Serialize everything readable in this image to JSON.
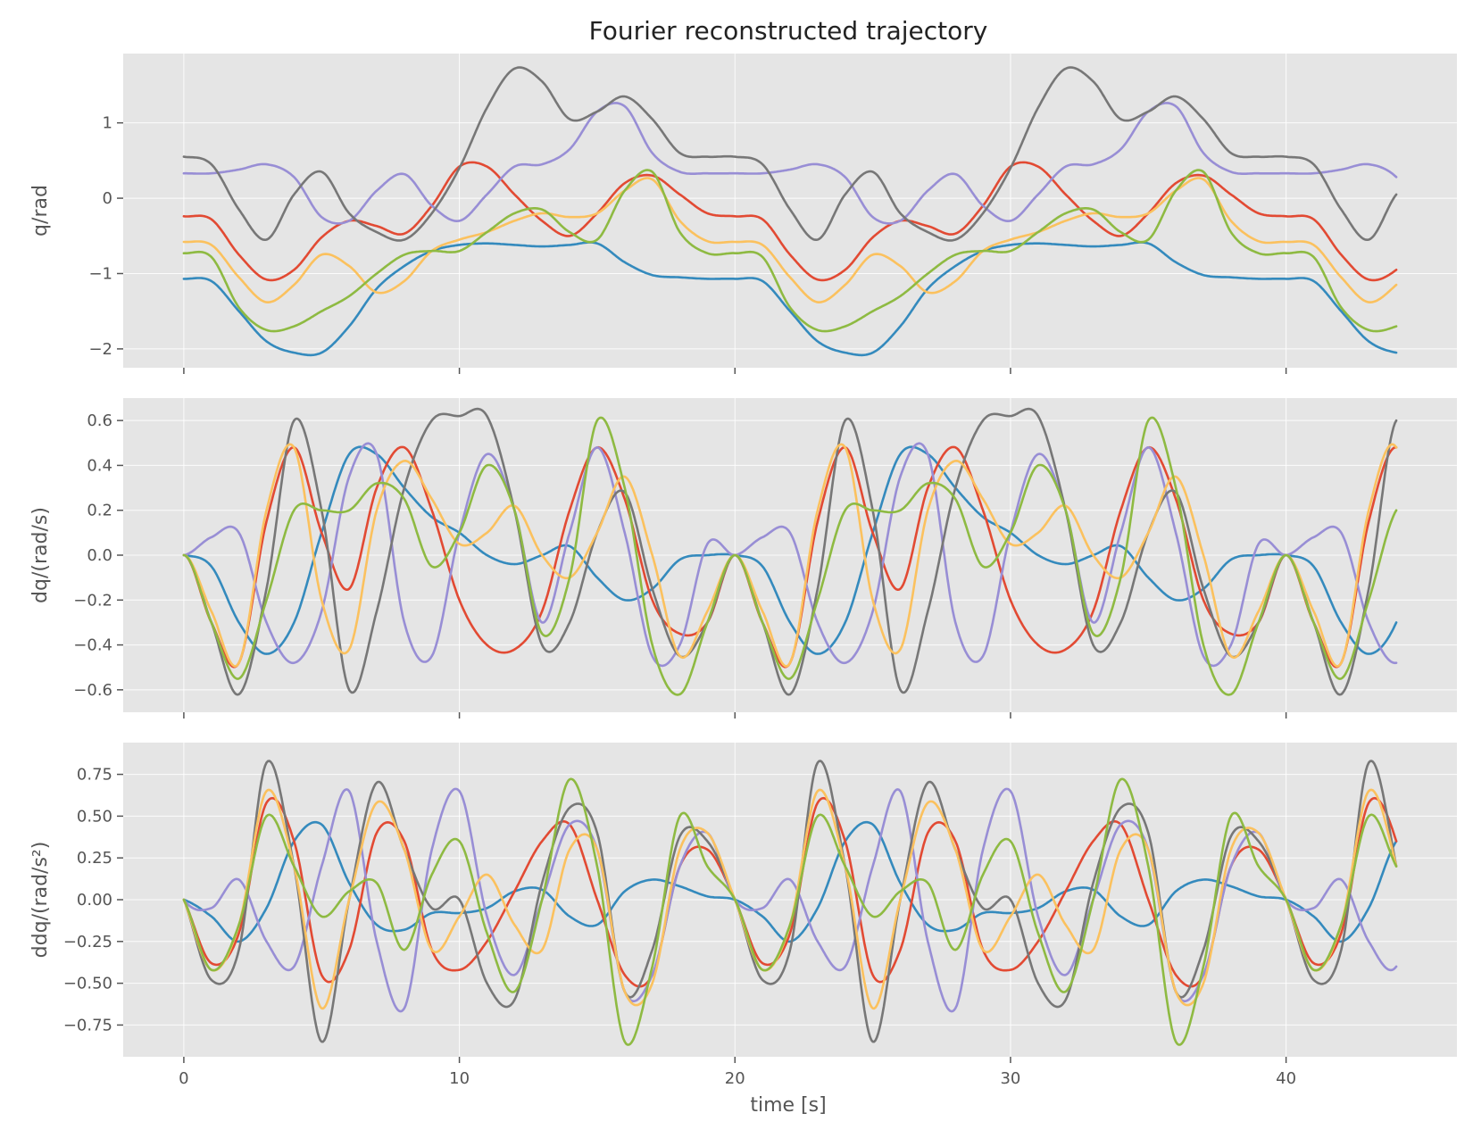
{
  "chart_data": {
    "type": "line",
    "title": "Fourier reconstructed trajectory",
    "xlabel": "time [s]",
    "xlim": [
      -2.2,
      46.2
    ],
    "xticks": [
      0,
      10,
      20,
      30,
      40
    ],
    "period": 20,
    "duration": 44,
    "grid": true,
    "legend": "none",
    "colors": [
      "#348ABD",
      "#E24A33",
      "#988ED5",
      "#777777",
      "#FBC15E",
      "#8EBA42"
    ],
    "subplots": [
      {
        "ylabel": "q/rad",
        "ylim": [
          -2.25,
          1.92
        ],
        "yticks": [
          -2,
          -1,
          0,
          1
        ],
        "ytick_labels": [
          "−2",
          "−1",
          "0",
          "1"
        ],
        "series": [
          {
            "x": [
              0,
              1,
              2,
              3,
              4,
              5,
              6,
              7,
              8,
              9,
              10,
              11,
              12,
              13,
              14,
              15,
              16,
              17,
              18,
              19,
              20
            ],
            "values": [
              -1.07,
              -1.1,
              -1.5,
              -1.9,
              -2.05,
              -2.05,
              -1.7,
              -1.2,
              -0.9,
              -0.7,
              -0.62,
              -0.6,
              -0.62,
              -0.64,
              -0.62,
              -0.6,
              -0.85,
              -1.02,
              -1.05,
              -1.07,
              -1.07
            ]
          },
          {
            "x": [
              0,
              1,
              2,
              3,
              4,
              5,
              6,
              7,
              8,
              9,
              10,
              11,
              12,
              13,
              14,
              15,
              16,
              17,
              18,
              19,
              20
            ],
            "values": [
              -0.24,
              -0.28,
              -0.75,
              -1.08,
              -0.95,
              -0.52,
              -0.3,
              -0.37,
              -0.47,
              -0.1,
              0.42,
              0.42,
              0.05,
              -0.3,
              -0.5,
              -0.2,
              0.2,
              0.3,
              0.05,
              -0.2,
              -0.24
            ]
          },
          {
            "x": [
              0,
              1,
              2,
              3,
              4,
              5,
              6,
              7,
              8,
              9,
              10,
              11,
              12,
              13,
              14,
              15,
              16,
              17,
              18,
              19,
              20
            ],
            "values": [
              0.33,
              0.33,
              0.38,
              0.45,
              0.28,
              -0.25,
              -0.3,
              0.1,
              0.32,
              -0.1,
              -0.3,
              0.05,
              0.42,
              0.45,
              0.65,
              1.15,
              1.22,
              0.6,
              0.35,
              0.33,
              0.33
            ]
          },
          {
            "x": [
              0,
              1,
              2,
              3,
              4,
              5,
              6,
              7,
              8,
              9,
              10,
              11,
              12,
              13,
              14,
              15,
              16,
              17,
              18,
              19,
              20
            ],
            "values": [
              0.55,
              0.45,
              -0.15,
              -0.55,
              0.05,
              0.35,
              -0.2,
              -0.45,
              -0.55,
              -0.2,
              0.4,
              1.2,
              1.72,
              1.55,
              1.05,
              1.15,
              1.35,
              1.05,
              0.6,
              0.55,
              0.55
            ]
          },
          {
            "x": [
              0,
              1,
              2,
              3,
              4,
              5,
              6,
              7,
              8,
              9,
              10,
              11,
              12,
              13,
              14,
              15,
              16,
              17,
              18,
              19,
              20
            ],
            "values": [
              -0.58,
              -0.62,
              -1.05,
              -1.38,
              -1.15,
              -0.75,
              -0.9,
              -1.25,
              -1.1,
              -0.7,
              -0.55,
              -0.45,
              -0.3,
              -0.2,
              -0.25,
              -0.2,
              0.1,
              0.25,
              -0.3,
              -0.57,
              -0.58
            ]
          },
          {
            "x": [
              0,
              1,
              2,
              3,
              4,
              5,
              6,
              7,
              8,
              9,
              10,
              11,
              12,
              13,
              14,
              15,
              16,
              17,
              18,
              19,
              20
            ],
            "values": [
              -0.73,
              -0.78,
              -1.45,
              -1.75,
              -1.7,
              -1.5,
              -1.3,
              -1.0,
              -0.75,
              -0.7,
              -0.7,
              -0.45,
              -0.2,
              -0.15,
              -0.45,
              -0.55,
              0.1,
              0.35,
              -0.45,
              -0.73,
              -0.73
            ]
          }
        ]
      },
      {
        "ylabel": "dq/(rad/s)",
        "ylim": [
          -0.7,
          0.7
        ],
        "yticks": [
          -0.6,
          -0.4,
          -0.2,
          0.0,
          0.2,
          0.4,
          0.6
        ],
        "ytick_labels": [
          "−0.6",
          "−0.4",
          "−0.2",
          "0.0",
          "0.2",
          "0.4",
          "0.6"
        ],
        "series": [
          {
            "x": [
              0,
              1,
              2,
              3,
              4,
              5,
              6,
              7,
              8,
              9,
              10,
              11,
              12,
              13,
              14,
              15,
              16,
              17,
              18,
              19,
              20
            ],
            "values": [
              0.0,
              -0.05,
              -0.3,
              -0.44,
              -0.3,
              0.1,
              0.45,
              0.45,
              0.3,
              0.17,
              0.1,
              0.0,
              -0.04,
              0.0,
              0.04,
              -0.1,
              -0.2,
              -0.15,
              -0.02,
              0.0,
              0.0
            ]
          },
          {
            "x": [
              0,
              1,
              2,
              3,
              4,
              5,
              6,
              7,
              8,
              9,
              10,
              11,
              12,
              13,
              14,
              15,
              16,
              17,
              18,
              19,
              20
            ],
            "values": [
              0.0,
              -0.3,
              -0.48,
              0.15,
              0.48,
              0.1,
              -0.15,
              0.3,
              0.48,
              0.2,
              -0.2,
              -0.4,
              -0.42,
              -0.25,
              0.2,
              0.48,
              0.25,
              -0.2,
              -0.35,
              -0.3,
              0.0
            ]
          },
          {
            "x": [
              0,
              1,
              2,
              3,
              4,
              5,
              6,
              7,
              8,
              9,
              10,
              11,
              12,
              13,
              14,
              15,
              16,
              17,
              18,
              19,
              20
            ],
            "values": [
              0.0,
              0.08,
              0.1,
              -0.3,
              -0.48,
              -0.25,
              0.35,
              0.45,
              -0.3,
              -0.45,
              0.1,
              0.45,
              0.2,
              -0.3,
              0.1,
              0.48,
              0.1,
              -0.45,
              -0.4,
              0.05,
              0.0
            ]
          },
          {
            "x": [
              0,
              1,
              2,
              3,
              4,
              5,
              6,
              7,
              8,
              9,
              10,
              11,
              12,
              13,
              14,
              15,
              16,
              17,
              18,
              19,
              20
            ],
            "values": [
              0.0,
              -0.3,
              -0.62,
              -0.15,
              0.6,
              0.2,
              -0.6,
              -0.25,
              0.3,
              0.6,
              0.62,
              0.62,
              0.2,
              -0.4,
              -0.3,
              0.1,
              0.28,
              -0.15,
              -0.45,
              -0.3,
              0.0
            ]
          },
          {
            "x": [
              0,
              1,
              2,
              3,
              4,
              5,
              6,
              7,
              8,
              9,
              10,
              11,
              12,
              13,
              14,
              15,
              16,
              17,
              18,
              19,
              20
            ],
            "values": [
              0.0,
              -0.25,
              -0.48,
              0.2,
              0.48,
              -0.2,
              -0.42,
              0.2,
              0.42,
              0.25,
              0.05,
              0.1,
              0.22,
              0.0,
              -0.1,
              0.1,
              0.35,
              0.0,
              -0.45,
              -0.25,
              0.0
            ]
          },
          {
            "x": [
              0,
              1,
              2,
              3,
              4,
              5,
              6,
              7,
              8,
              9,
              10,
              11,
              12,
              13,
              14,
              15,
              16,
              17,
              18,
              19,
              20
            ],
            "values": [
              0.0,
              -0.3,
              -0.55,
              -0.2,
              0.2,
              0.2,
              0.2,
              0.32,
              0.25,
              -0.05,
              0.1,
              0.4,
              0.2,
              -0.35,
              -0.1,
              0.6,
              0.3,
              -0.4,
              -0.62,
              -0.3,
              0.0
            ]
          }
        ]
      },
      {
        "ylabel": "ddq/(rad/s²)",
        "ylim": [
          -0.94,
          0.94
        ],
        "yticks": [
          -0.75,
          -0.5,
          -0.25,
          0.0,
          0.25,
          0.5,
          0.75
        ],
        "ytick_labels": [
          "−0.75",
          "−0.50",
          "−0.25",
          "0.00",
          "0.25",
          "0.50",
          "0.75"
        ],
        "series": [
          {
            "x": [
              0,
              1,
              2,
              3,
              4,
              5,
              6,
              7,
              8,
              9,
              10,
              11,
              12,
              13,
              14,
              15,
              16,
              17,
              18,
              19,
              20
            ],
            "values": [
              0.0,
              -0.1,
              -0.25,
              -0.05,
              0.35,
              0.45,
              0.1,
              -0.15,
              -0.18,
              -0.08,
              -0.08,
              -0.05,
              0.05,
              0.06,
              -0.1,
              -0.15,
              0.05,
              0.12,
              0.08,
              0.02,
              0.0
            ]
          },
          {
            "x": [
              0,
              1,
              2,
              3,
              4,
              5,
              6,
              7,
              8,
              9,
              10,
              11,
              12,
              13,
              14,
              15,
              16,
              17,
              18,
              19,
              20
            ],
            "values": [
              0.0,
              -0.38,
              -0.2,
              0.58,
              0.35,
              -0.45,
              -0.3,
              0.4,
              0.35,
              -0.3,
              -0.42,
              -0.25,
              0.05,
              0.35,
              0.45,
              0.0,
              -0.45,
              -0.45,
              0.2,
              0.3,
              0.0
            ]
          },
          {
            "x": [
              0,
              1,
              2,
              3,
              4,
              5,
              6,
              7,
              8,
              9,
              10,
              11,
              12,
              13,
              14,
              15,
              16,
              17,
              18,
              19,
              20
            ],
            "values": [
              0.0,
              -0.05,
              0.12,
              -0.25,
              -0.4,
              0.2,
              0.65,
              -0.25,
              -0.65,
              0.3,
              0.65,
              -0.1,
              -0.45,
              0.0,
              0.45,
              0.3,
              -0.55,
              -0.45,
              0.2,
              0.4,
              0.0
            ]
          },
          {
            "x": [
              0,
              1,
              2,
              3,
              4,
              5,
              6,
              7,
              8,
              9,
              10,
              11,
              12,
              13,
              14,
              15,
              16,
              17,
              18,
              19,
              20
            ],
            "values": [
              0.0,
              -0.48,
              -0.3,
              0.82,
              0.2,
              -0.85,
              0.0,
              0.7,
              0.3,
              -0.05,
              0.0,
              -0.5,
              -0.6,
              0.1,
              0.55,
              0.4,
              -0.55,
              -0.3,
              0.38,
              0.35,
              0.0
            ]
          },
          {
            "x": [
              0,
              1,
              2,
              3,
              4,
              5,
              6,
              7,
              8,
              9,
              10,
              11,
              12,
              13,
              14,
              15,
              16,
              17,
              18,
              19,
              20
            ],
            "values": [
              0.0,
              -0.42,
              -0.15,
              0.65,
              0.2,
              -0.65,
              0.0,
              0.58,
              0.3,
              -0.3,
              -0.1,
              0.15,
              -0.15,
              -0.3,
              0.3,
              0.3,
              -0.55,
              -0.5,
              0.3,
              0.4,
              0.0
            ]
          },
          {
            "x": [
              0,
              1,
              2,
              3,
              4,
              5,
              6,
              7,
              8,
              9,
              10,
              11,
              12,
              13,
              14,
              15,
              16,
              17,
              18,
              19,
              20
            ],
            "values": [
              0.0,
              -0.42,
              -0.15,
              0.5,
              0.2,
              -0.1,
              0.05,
              0.1,
              -0.3,
              0.15,
              0.35,
              -0.2,
              -0.55,
              0.0,
              0.72,
              0.2,
              -0.85,
              -0.4,
              0.5,
              0.2,
              0.0
            ]
          }
        ]
      }
    ]
  }
}
